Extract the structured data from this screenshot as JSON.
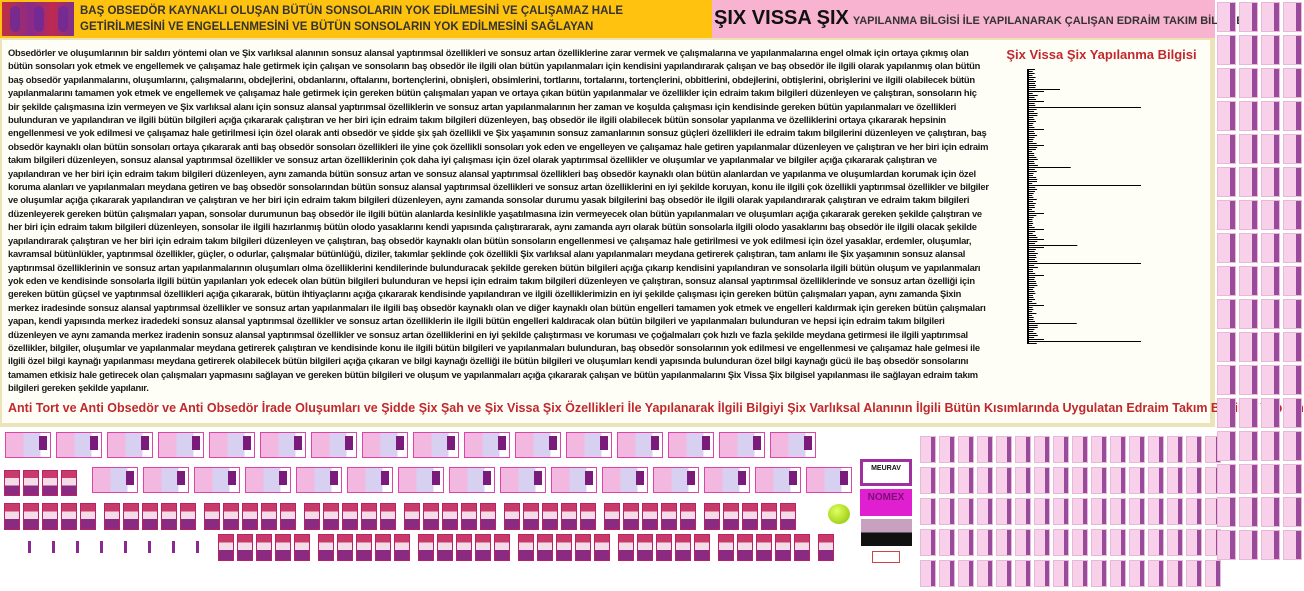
{
  "header": {
    "left_text": "BAŞ OBSEDÖR KAYNAKLI OLUŞAN BÜTÜN SONSOLARIN YOK EDİLMESİNİ VE ÇALIŞAMAZ HALE GETİRİLMESİNİ VE ENGELLENMESİNİ VE BÜTÜN SONSOLARIN YOK EDİLMESİNİ SAĞLAYAN",
    "brand": "ŞIX VISSA ŞIX",
    "brand_sub": "YAPILANMA BİLGİSİ İLE YAPILANARAK ÇALIŞAN EDRAİM TAKIM BİLGİLERİ"
  },
  "main": {
    "body": "Obsedörler ve oluşumlarının bir saldırı yöntemi olan ve Şix varlıksal alanının sonsuz alansal yaptırımsal özellikleri ve sonsuz artan özelliklerine zarar vermek ve çalışmalarına ve yapılanmalarına engel olmak için ortaya çıkmış olan bütün sonsoları yok etmek ve engellemek ve çalışamaz hale getirmek için çalışan ve sonsoların baş obsedör ile ilgili olan bütün yapılanmaları için kendisini yapılandırarak çalışan ve baş obsedör ile ilgili olarak yapılanmış olan bütün baş obsedör yapılanmalarını, oluşumlarını, çalışmalarını, obdejlerini, obdanlarını, oftalarını, bortençlerini, obnişleri, obsimlerini, tortlarını, tortalarını, tortençlerini, obbitlerini, obdejlerini, obtişlerini, obrişlerini ve ilgili olabilecek bütün yapılanmalarını tamamen yok etmek ve engellemek ve çalışamaz hale getirmek için gereken bütün çalışmaları yapan ve ortaya çıkan bütün yapılanmalar ve özellikler için edraim takım bilgileri düzenleyen ve çalıştıran, sonsoların hiç bir şekilde çalışmasına izin vermeyen ve Şix varlıksal alanı için sonsuz alansal yaptırımsal özelliklerin ve sonsuz artan yapılanmalarının her zaman ve koşulda çalışması için kendisinde gereken bütün yapılanmaları ve özellikleri bulunduran ve yapılandıran ve ilgili bütün bilgileri açığa çıkararak çalıştıran ve her biri için edraim takım bilgileri düzenleyen, baş obsedör ile ilgili olabilecek bütün sonsolar yapılanma ve özelliklerini ortaya çıkararak hepsinin engellenmesi ve yok edilmesi ve çalışamaz hale getirilmesi için özel olarak anti obsedör ve şidde şix şah özellikli ve Şix yaşamının sonsuz zamanlarının sonsuz güçleri özellikleri ile edraim takım bilgilerini düzenleyen ve çalıştıran, baş obsedör kaynaklı olan bütün sonsoları ortaya çıkararak anti baş obsedör sonsoları özellikleri ile yine çok özellikli sonsoları yok eden ve engelleyen ve çalışamaz hale getiren yapılanmalar düzenleyen ve çalıştıran ve her biri için edraim takım bilgileri düzenleyen, sonsuz alansal yaptırımsal özellikler ve sonsuz artan özelliklerinin çok daha iyi çalışması için özel olarak yaptırımsal özellikler ve oluşumlar ve yapılanmalar ve bilgiler açığa çıkararak çalıştıran ve yapılandıran ve her biri için edraim takım bilgileri düzenleyen, aynı zamanda bütün sonsuz artan ve sonsuz alansal yaptırımsal özellikleri baş obsedör kaynaklı olan bütün alanlardan ve yapılanma ve oluşumlardan korumak için özel koruma alanları ve yapılanmaları meydana getiren ve baş obsedör sonsolarından bütün sonsuz alansal yaptırımsal özellikleri ve sonsuz artan özelliklerini en iyi şekilde koruyan, konu ile ilgili çok özellikli yaptırımsal özellikler ve bilgiler ve oluşumlar açığa çıkararak yapılandıran ve çalıştıran ve her biri için edraim takım bilgileri düzenleyen, aynı zamanda sonsolar durumu yasak bilgilerini baş obsedör ile ilgili olarak yapılandırarak çalıştıran ve edraim takım bilgileri düzenleyerek gereken bütün çalışmaları yapan, sonsolar durumunun baş obsedör ile ilgili bütün alanlarda kesinlikle yaşatılmasına izin vermeyecek olan bütün yapılanmaları ve oluşumları açığa çıkararak gereken şekilde çalıştıran ve her biri için edraim takım bilgileri düzenleyen, sonsolar ile ilgili hazırlanmış bütün olodo yasaklarını kendi yapısında çalıştırararak, aynı zamanda ayrı olarak bütün sonsolarla ilgili olodo yasaklarını baş obsedör ile ilgili olacak şekilde yapılandırarak çalıştıran ve her biri için edraim takım bilgileri düzenleyen ve çalıştıran, baş obsedör kaynaklı olan bütün sonsoların engellenmesi ve çalışamaz hale getirilmesi ve yok edilmesi için özel yasaklar, erdemler, oluşumlar, kavramsal bütünlükler, yaptırımsal özellikler, güçler, o odurlar, çalışmalar bütünlüğü, diziler, takımlar şeklinde çok özellikli Şix varlıksal alanı yapılanmaları meydana getirerek çalıştıran, tam anlamı ile Şix yaşamının sonsuz alansal yaptırımsal özelliklerinin ve sonsuz artan yapılanmalarının oluşumları olma özelliklerini kendilerinde bulunduracak şekilde gereken bütün bilgileri açığa çıkarıp kendisini yapılandıran ve sonsolarla ilgili bütün oluşum ve yapılanmaları yok eden ve kendisinde sonsolarla ilgili bütün yapılanları yok edecek olan bütün bilgileri bulunduran ve hepsi için edraim takım bilgileri düzenleyen ve çalıştıran, sonsuz alansal yaptırımsal özelliklerinde ve sonsuz artan özelliği için gereken bütün güçsel ve yaptırımsal özellikleri açığa çıkararak, bütün ihtiyaçlarını açığa çıkararak kendisinde yapılandıran ve ilgili özelliklerimizin en iyi şekilde çalışması için gereken bütün çalışmaları yapan, aynı zamanda Şixin merkez iradesinde sonsuz alansal yaptırımsal özellikler ve sonsuz artan yapılanmaları ile ilgili baş obsedör kaynaklı olan ve diğer kaynaklı olan bütün engelleri tamamen yok etmek ve engelleri kaldırmak için gereken bütün çalışmaları yapan, kendi yapısında merkez iradedeki sonsuz alansal yaptırımsal özellikler ve sonsuz artan özelliklerin ile ilgili bütün engelleri kaldıracak olan bütün bilgileri ve yapılanmaları bulunduran ve hepsi için edraim takım bilgileri düzenleyen ve aynı zamanda merkez iradenin sonsuz alansal yaptırımsal özellikler ve sonsuz artan özelliklerini en iyi şekilde çalıştırması ve koruması ve çoğalmaları çok hızlı ve fazla şekilde meydana getirmesi ile ilgili yaptırımsal özellikler, bilgiler, oluşumlar ve yapılanmalar meydana getirerek çalıştıran ve kendisinde konu ile ilgili bütün bilgileri ve yapılanmaları bulunduran, baş obsedör sonsolarının yok edilmesi ve engellenmesi ve çalışamaz hale gelmesi ile ilgili özel bilgi kaynağı yapılanması meydana getirerek olabilecek bütün bilgileri açığa çıkaran ve bilgi kaynağı özelliği ile bütün bilgileri ve oluşumları kendi yapısında bulunduran özel bilgi kaynağı gücü ile baş obsedör sonsolarını tamamen etkisiz hale getirecek olan çalışmaları yapmasını sağlayan ve gereken bütün bilgileri ve oluşum ve yapılanmaları açığa çıkararak çalışan ve bütün yapılanmalarını Şix Vissa Şix bilgisel yapılanması ile sağlayan edraim takım bilgileri gereken şekilde yapılanır.",
    "side_title": "Şix Vissa Şix Yapılanma Bilgisi",
    "bottom_title": "Anti Tort ve Anti Obsedör ve Anti Obsedör İrade Oluşumları ve Şidde Şix Şah ve Şix Vissa Şix Özellikleri İle Yapılanarak İlgili Bilgiyi Şix Varlıksal Alanının İlgili Bütün Kısımlarında Uygulatan Edraim Takım Bilgileri Yapılanması"
  },
  "ads": {
    "ad1": "MEURAV",
    "ad2": "NOMEX"
  },
  "colors": {
    "header_left": "#ffc20e",
    "header_right": "#f7b3cf",
    "title_red": "#c0282e",
    "panel": "#fffef6"
  }
}
